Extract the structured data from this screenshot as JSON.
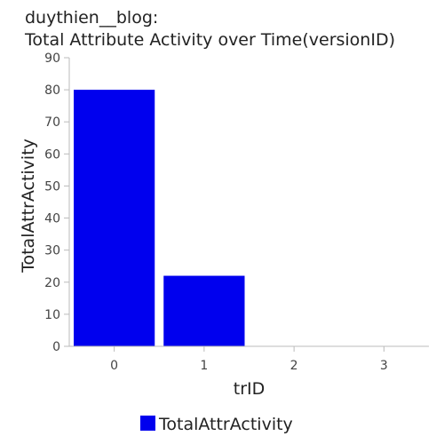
{
  "chart_data": {
    "type": "bar",
    "title": "duythien__blog:",
    "subtitle": "Total Attribute Activity over Time(versionID)",
    "xlabel": "trID",
    "ylabel": "TotalAttrActivity",
    "categories": [
      "0",
      "1",
      "2",
      "3"
    ],
    "series": [
      {
        "name": "TotalAttrActivity",
        "values": [
          80,
          22,
          0,
          0
        ],
        "color": "#0000ee"
      }
    ],
    "ylim": [
      0,
      90
    ],
    "yticks": [
      0,
      10,
      20,
      30,
      40,
      50,
      60,
      70,
      80,
      90
    ],
    "grid": false,
    "legend": "bottom-center"
  }
}
